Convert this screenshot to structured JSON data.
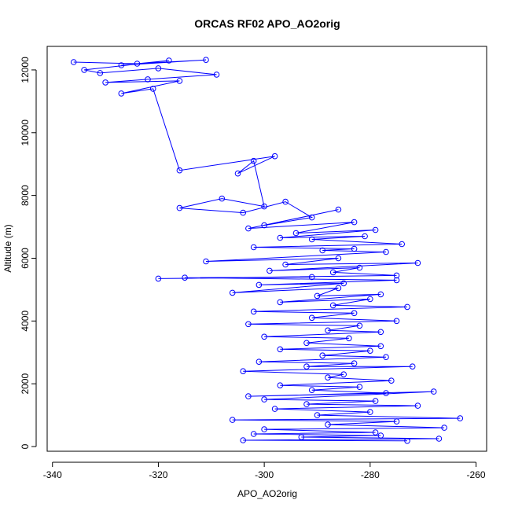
{
  "chart_data": {
    "type": "scatter",
    "title": "ORCAS RF02 APO_AO2orig",
    "xlabel": "APO_AO2orig",
    "ylabel": "Altitude (m)",
    "xlim": [
      -341,
      -258
    ],
    "ylim": [
      -150,
      12750
    ],
    "x_ticks": [
      -340,
      -320,
      -300,
      -280,
      -260
    ],
    "y_ticks": [
      0,
      2000,
      4000,
      6000,
      8000,
      10000,
      12000
    ],
    "grid": false,
    "legend": "none",
    "series_color": "#0000ff",
    "marker": "open-circle",
    "connected": true,
    "series": [
      {
        "x": [
          -336,
          -324,
          -311,
          -327,
          -318,
          -334,
          -331,
          -320,
          -309,
          -322,
          -330,
          -316,
          -327,
          -321,
          -316,
          -298,
          -305,
          -302,
          -300,
          -308,
          -316,
          -304,
          -296,
          -291,
          -300,
          -286,
          -303,
          -283,
          -294,
          -279,
          -297,
          -281,
          -291,
          -274,
          -302,
          -283,
          -289,
          -277,
          -311,
          -286,
          -296,
          -271,
          -299,
          -282,
          -287,
          -275,
          -320,
          -291,
          -315,
          -275,
          -301,
          -285,
          -306,
          -286,
          -290,
          -278,
          -297,
          -280,
          -287,
          -273,
          -302,
          -283,
          -291,
          -275,
          -303,
          -282,
          -288,
          -278,
          -300,
          -284,
          -292,
          -278,
          -297,
          -280,
          -289,
          -277,
          -301,
          -283,
          -292,
          -272,
          -304,
          -285,
          -288,
          -276,
          -297,
          -282,
          -291,
          -277,
          -303,
          -268,
          -300,
          -279,
          -292,
          -271,
          -298,
          -280,
          -290,
          -263,
          -306,
          -275,
          -288,
          -266,
          -300,
          -279,
          -302,
          -278,
          -293,
          -267,
          -304,
          -273
        ],
        "y": [
          12250,
          12200,
          12320,
          12150,
          12300,
          12000,
          11900,
          12050,
          11850,
          11700,
          11600,
          11650,
          11250,
          11400,
          8800,
          9250,
          8700,
          9100,
          7650,
          7900,
          7600,
          7450,
          7800,
          7300,
          7050,
          7550,
          6950,
          7150,
          6800,
          6900,
          6650,
          6700,
          6600,
          6450,
          6350,
          6300,
          6250,
          6200,
          5900,
          6000,
          5800,
          5850,
          5600,
          5700,
          5550,
          5450,
          5350,
          5400,
          5380,
          5300,
          5150,
          5200,
          4900,
          5050,
          4800,
          4850,
          4600,
          4700,
          4500,
          4450,
          4300,
          4250,
          4100,
          4000,
          3900,
          3850,
          3700,
          3650,
          3500,
          3450,
          3300,
          3200,
          3100,
          3050,
          2900,
          2850,
          2700,
          2650,
          2550,
          2550,
          2400,
          2300,
          2200,
          2100,
          1950,
          1900,
          1800,
          1700,
          1600,
          1750,
          1500,
          1450,
          1350,
          1300,
          1200,
          1100,
          1000,
          900,
          850,
          800,
          700,
          600,
          550,
          450,
          400,
          350,
          300,
          250,
          200,
          180
        ]
      }
    ]
  }
}
